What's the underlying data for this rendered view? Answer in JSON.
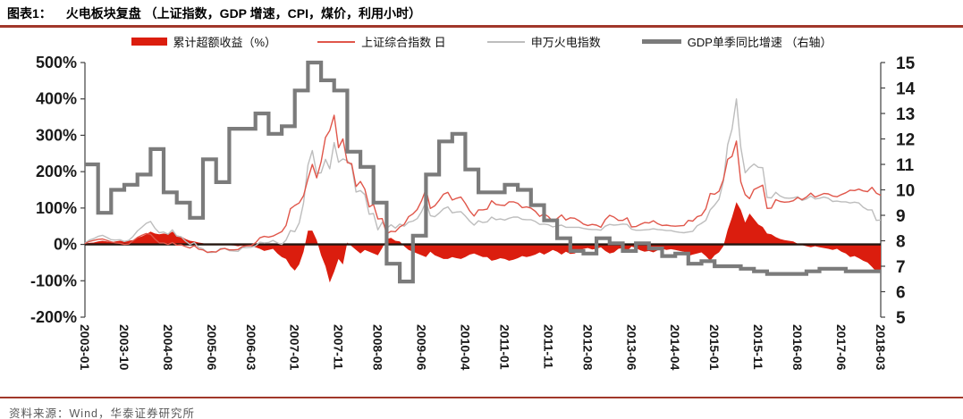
{
  "header": {
    "label": "图表1：",
    "title": "火电板块复盘 （上证指数，GDP 增速，CPI，煤价，利用小时）"
  },
  "legend": [
    {
      "label": "累计超额收益（%）",
      "type": "area",
      "color": "#DB1D0E"
    },
    {
      "label": "上证综合指数 日",
      "type": "line",
      "color": "#E0564A"
    },
    {
      "label": "申万火电指数",
      "type": "line",
      "color": "#BDBDBD"
    },
    {
      "label": "GDP单季同比增速 （右轴）",
      "type": "thick-line",
      "color": "#7B7B7B"
    }
  ],
  "footer": {
    "text": "资料来源：Wind，华泰证券研究所"
  },
  "chart_data": {
    "type": "line",
    "title": "火电板块复盘 （上证指数，GDP 增速，CPI，煤价，利用小时）",
    "grid": false,
    "plot_background": "#ffffff",
    "zero_line_color": "#23150F",
    "axis_color": "#404040",
    "label_color": "#1a1a1a",
    "left_axis": {
      "min": -200,
      "max": 500,
      "ticks": [
        {
          "label": "500%",
          "value": 500
        },
        {
          "label": "400%",
          "value": 400
        },
        {
          "label": "300%",
          "value": 300
        },
        {
          "label": "200%",
          "value": 200
        },
        {
          "label": "100%",
          "value": 100
        },
        {
          "label": "0%",
          "value": 0
        },
        {
          "label": "-100%",
          "value": -100
        },
        {
          "label": "-200%",
          "value": -200
        }
      ]
    },
    "right_axis": {
      "min": 5,
      "max": 15,
      "ticks": [
        {
          "label": "15",
          "value": 15
        },
        {
          "label": "14",
          "value": 14
        },
        {
          "label": "13",
          "value": 13
        },
        {
          "label": "12",
          "value": 12
        },
        {
          "label": "11",
          "value": 11
        },
        {
          "label": "10",
          "value": 10
        },
        {
          "label": "9",
          "value": 9
        },
        {
          "label": "8",
          "value": 8
        },
        {
          "label": "7",
          "value": 7
        },
        {
          "label": "6",
          "value": 6
        },
        {
          "label": "5",
          "value": 5
        }
      ]
    },
    "x_start": "2003-01",
    "x_end": "2018-03",
    "x_ticks": [
      {
        "label": "2003-01",
        "month": 0
      },
      {
        "label": "2003-10",
        "month": 9
      },
      {
        "label": "2004-08",
        "month": 19
      },
      {
        "label": "2005-06",
        "month": 29
      },
      {
        "label": "2006-03",
        "month": 38
      },
      {
        "label": "2007-01",
        "month": 48
      },
      {
        "label": "2007-11",
        "month": 58
      },
      {
        "label": "2008-08",
        "month": 67
      },
      {
        "label": "2009-06",
        "month": 77
      },
      {
        "label": "2010-04",
        "month": 87
      },
      {
        "label": "2011-01",
        "month": 96
      },
      {
        "label": "2011-11",
        "month": 106
      },
      {
        "label": "2012-08",
        "month": 115
      },
      {
        "label": "2013-06",
        "month": 125
      },
      {
        "label": "2014-04",
        "month": 135
      },
      {
        "label": "2015-01",
        "month": 144
      },
      {
        "label": "2015-11",
        "month": 154
      },
      {
        "label": "2016-08",
        "month": 163
      },
      {
        "label": "2017-06",
        "month": 173
      },
      {
        "label": "2018-03",
        "month": 182
      }
    ],
    "series": [
      {
        "name": "累计超额收益（%）",
        "type": "area",
        "axis": "left",
        "color": "#DB1D0E",
        "derived": "申万火电指数 − 上证综合指数 (cumulative %, monthly)"
      },
      {
        "name": "上证综合指数 日",
        "type": "line",
        "axis": "left",
        "color": "#E0564A",
        "unit": "cumulative % since 2003-01, monthly samples",
        "values": [
          2,
          8,
          11,
          14,
          15,
          11,
          7,
          4,
          3,
          0,
          1,
          10,
          19,
          25,
          30,
          28,
          15,
          4,
          4,
          0,
          5,
          -2,
          -1,
          -6,
          -10,
          -3,
          -13,
          -15,
          -22,
          -20,
          -21,
          -13,
          -11,
          -15,
          -15,
          -14,
          -6,
          -4,
          -3,
          4,
          18,
          22,
          20,
          23,
          29,
          35,
          52,
          98,
          107,
          114,
          134,
          180,
          220,
          183,
          227,
          294,
          313,
          355,
          266,
          290,
          225,
          222,
          159,
          173,
          152,
          103,
          110,
          70,
          71,
          29,
          36,
          35,
          48,
          55,
          76,
          84,
          96,
          120,
          152,
          99,
          106,
          121,
          138,
          143,
          122,
          127,
          130,
          113,
          92,
          78,
          95,
          95,
          97,
          120,
          110,
          108,
          107,
          117,
          117,
          113,
          101,
          103,
          100,
          91,
          77,
          84,
          76,
          63,
          71,
          81,
          67,
          73,
          72,
          65,
          56,
          52,
          55,
          53,
          47,
          68,
          80,
          75,
          66,
          66,
          73,
          48,
          49,
          55,
          60,
          59,
          65,
          57,
          52,
          53,
          51,
          50,
          51,
          52,
          66,
          64,
          76,
          80,
          98,
          140,
          138,
          146,
          178,
          234,
          242,
          284,
          172,
          137,
          126,
          151,
          157,
          163,
          99,
          100,
          123,
          118,
          116,
          117,
          120,
          129,
          123,
          130,
          141,
          130,
          135,
          140,
          139,
          133,
          131,
          137,
          142,
          149,
          148,
          152,
          147,
          145,
          157,
          141,
          135
        ]
      },
      {
        "name": "申万火电指数",
        "type": "line",
        "axis": "left",
        "color": "#BDBDBD",
        "unit": "cumulative % since 2003-01, monthly samples",
        "values": [
          4,
          12,
          16,
          22,
          25,
          19,
          13,
          12,
          13,
          8,
          11,
          22,
          37,
          47,
          58,
          63,
          45,
          32,
          34,
          28,
          40,
          23,
          21,
          9,
          0,
          5,
          -8,
          -12,
          -22,
          -22,
          -21,
          -11,
          -11,
          -17,
          -18,
          -19,
          -9,
          -9,
          -8,
          -4,
          6,
          4,
          5,
          11,
          4,
          0,
          12,
          38,
          35,
          59,
          114,
          218,
          258,
          195,
          197,
          234,
          208,
          280,
          226,
          235,
          230,
          217,
          144,
          148,
          137,
          83,
          85,
          40,
          61,
          44,
          54,
          45,
          56,
          50,
          61,
          64,
          71,
          90,
          117,
          79,
          76,
          86,
          98,
          103,
          87,
          89,
          90,
          78,
          64,
          53,
          65,
          60,
          62,
          75,
          68,
          70,
          67,
          72,
          75,
          75,
          69,
          68,
          68,
          63,
          55,
          56,
          54,
          48,
          51,
          53,
          47,
          47,
          47,
          47,
          44,
          42,
          41,
          41,
          39,
          50,
          55,
          53,
          54,
          56,
          55,
          42,
          39,
          39,
          40,
          41,
          43,
          41,
          40,
          38,
          38,
          35,
          33,
          32,
          34,
          36,
          51,
          58,
          66,
          95,
          108,
          124,
          173,
          274,
          317,
          400,
          267,
          197,
          211,
          221,
          212,
          211,
          129,
          128,
          143,
          133,
          128,
          127,
          128,
          131,
          121,
          125,
          133,
          125,
          127,
          130,
          127,
          118,
          119,
          117,
          117,
          114,
          116,
          114,
          102,
          95,
          95,
          66,
          67
        ]
      },
      {
        "name": "GDP单季同比增速 （右轴）",
        "type": "step",
        "axis": "right",
        "color": "#7B7B7B",
        "unit": "%, quarterly 2003Q1–2018Q1",
        "values": [
          11.0,
          9.1,
          10.0,
          10.2,
          10.6,
          11.6,
          9.9,
          9.5,
          8.9,
          11.2,
          10.3,
          12.4,
          12.4,
          13.0,
          12.2,
          12.5,
          13.9,
          15.0,
          14.3,
          13.9,
          11.5,
          10.9,
          9.5,
          7.1,
          6.4,
          8.2,
          10.6,
          11.9,
          12.2,
          10.8,
          9.9,
          9.9,
          10.2,
          10.0,
          9.4,
          8.8,
          8.1,
          7.6,
          7.5,
          8.1,
          7.9,
          7.6,
          7.9,
          7.7,
          7.4,
          7.5,
          7.1,
          7.2,
          7.0,
          7.0,
          6.9,
          6.8,
          6.7,
          6.7,
          6.7,
          6.8,
          6.9,
          6.9,
          6.8,
          6.8,
          6.8
        ]
      }
    ]
  }
}
